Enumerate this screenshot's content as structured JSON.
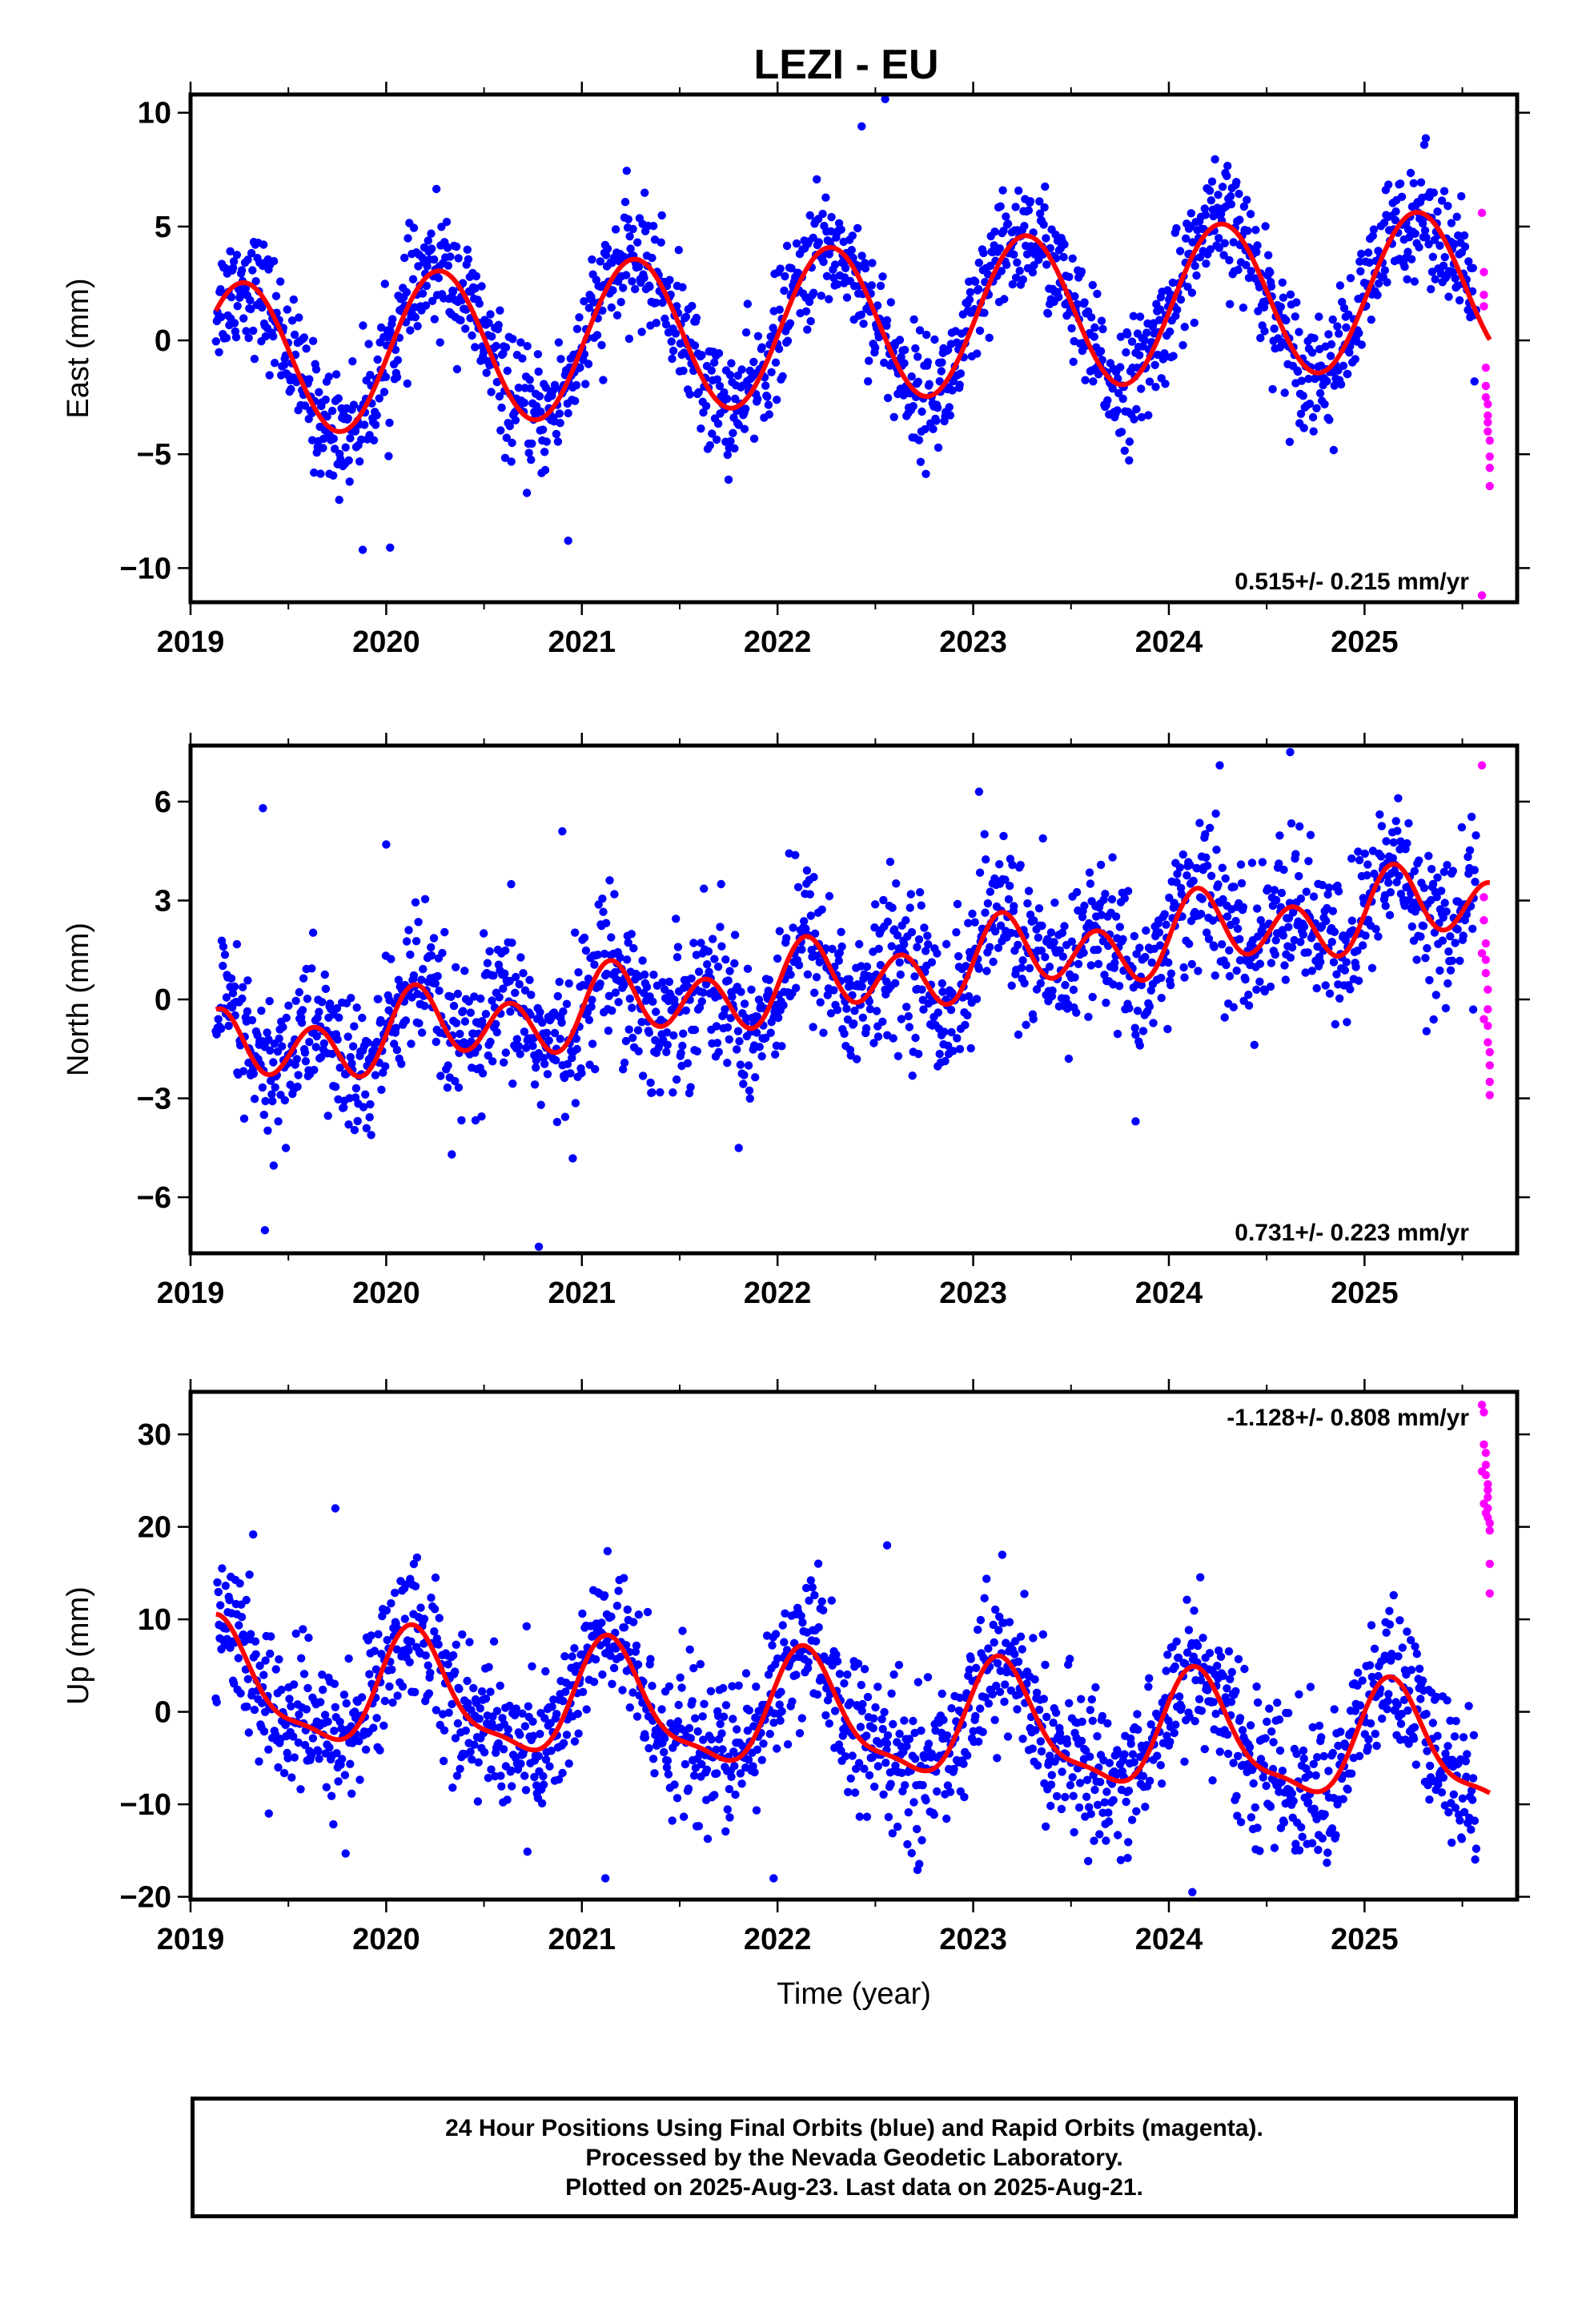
{
  "chart_data": {
    "title": "LEZI - EU",
    "type": "scatter",
    "xlabel": "Time (year)",
    "xlim": [
      2019.0,
      2025.78
    ],
    "x_ticks": [
      "2019",
      "2020",
      "2021",
      "2022",
      "2023",
      "2024",
      "2025"
    ],
    "grid": false,
    "legend": "none",
    "colors": {
      "final": "#0000ff",
      "rapid": "#ff00ff",
      "model": "#ff0000"
    },
    "panels": [
      {
        "ylabel": "East (mm)",
        "ylim": [
          -11.5,
          10.8
        ],
        "y_ticks": [
          10,
          5,
          0,
          -5,
          -10
        ],
        "y_tick_labels": [
          "10",
          "5",
          "0",
          "−5",
          "−10"
        ],
        "rate_text": "0.515+/- 0.215 mm/yr",
        "rate_pos": "bottom-right",
        "model": {
          "offset": -1.0,
          "rate": 0.515,
          "annual_amp": 3.4,
          "annual_phase": -0.1,
          "semi_amp": 0.0,
          "semi_phase": 0.0,
          "x_start": 2019.13,
          "x_end": 2025.64
        },
        "noise_sd": 1.3,
        "final_points": {
          "x_start": 2019.13,
          "x_end": 2025.57,
          "count": 1700
        },
        "rapid_points": {
          "x": [
            2025.6,
            2025.61,
            2025.61,
            2025.62,
            2025.62,
            2025.62,
            2025.63,
            2025.63,
            2025.63,
            2025.63,
            2025.64,
            2025.64,
            2025.64,
            2025.64,
            2025.6,
            2025.61
          ],
          "y": [
            5.6,
            2.0,
            1.5,
            -1.2,
            -2.0,
            -2.5,
            -2.8,
            -3.3,
            -3.6,
            -4.0,
            -4.4,
            -5.1,
            -5.6,
            -6.4,
            -11.2,
            3.0
          ]
        },
        "outliers": {
          "x": [
            2022.43,
            2022.55,
            2019.88,
            2020.02,
            2020.93
          ],
          "y": [
            9.4,
            10.6,
            -9.2,
            -9.1,
            -8.8
          ]
        }
      },
      {
        "ylabel": "North (mm)",
        "ylim": [
          -7.7,
          7.7
        ],
        "y_ticks": [
          6,
          3,
          0,
          -3,
          -6
        ],
        "y_tick_labels": [
          "6",
          "3",
          "0",
          "−3",
          "−6"
        ],
        "rate_text": "0.731+/- 0.223 mm/yr",
        "rate_pos": "bottom-right",
        "model": {
          "offset": -1.8,
          "rate": 0.731,
          "annual_amp": 0.5,
          "annual_phase": 0.3,
          "semi_amp": 0.95,
          "semi_phase": -0.15,
          "x_start": 2019.13,
          "x_end": 2025.64
        },
        "noise_sd": 1.15,
        "final_points": {
          "x_start": 2019.13,
          "x_end": 2025.57,
          "count": 1700
        },
        "rapid_points": {
          "x": [
            2025.6,
            2025.61,
            2025.61,
            2025.62,
            2025.62,
            2025.62,
            2025.63,
            2025.63,
            2025.63,
            2025.63,
            2025.64,
            2025.64,
            2025.64,
            2025.64,
            2025.6,
            2025.61
          ],
          "y": [
            7.1,
            3.1,
            2.4,
            1.7,
            1.2,
            0.8,
            0.3,
            -0.3,
            -0.8,
            -1.3,
            -1.6,
            -2.0,
            -2.5,
            -2.9,
            1.4,
            -0.6
          ]
        },
        "outliers": {
          "x": [
            2019.37,
            2019.38,
            2020.0,
            2020.9,
            2020.78,
            2024.62,
            2024.26,
            2023.83,
            2023.03
          ],
          "y": [
            5.8,
            -7.0,
            4.7,
            5.1,
            -7.5,
            7.5,
            7.1,
            -3.7,
            6.3
          ]
        }
      },
      {
        "ylabel": "Up (mm)",
        "ylim": [
          -20.3,
          34.6
        ],
        "y_ticks": [
          30,
          20,
          10,
          0,
          -10,
          -20
        ],
        "y_tick_labels": [
          "30",
          "20",
          "10",
          "0",
          "−10",
          "−20"
        ],
        "rate_text": "-1.128+/- 0.808 mm/yr",
        "rate_pos": "top-right",
        "model": {
          "offset": 3.0,
          "rate": -1.128,
          "annual_amp": 6.0,
          "annual_phase": 0.62,
          "semi_amp": 1.8,
          "semi_phase": 0.15,
          "x_start": 2019.13,
          "x_end": 2025.64
        },
        "noise_sd": 4.0,
        "final_points": {
          "x_start": 2019.13,
          "x_end": 2025.57,
          "count": 1700
        },
        "rapid_points": {
          "x": [
            2025.6,
            2025.61,
            2025.61,
            2025.62,
            2025.62,
            2025.62,
            2025.63,
            2025.63,
            2025.63,
            2025.63,
            2025.64,
            2025.64,
            2025.64,
            2025.64,
            2025.6,
            2025.61,
            2025.62,
            2025.63
          ],
          "y": [
            33.2,
            32.4,
            28.9,
            28.0,
            26.7,
            25.6,
            24.6,
            23.2,
            22.0,
            21.0,
            20.4,
            19.6,
            16.0,
            12.8,
            26.0,
            22.5,
            21.5,
            24.0
          ]
        },
        "outliers": {
          "x": [
            2019.74,
            2021.12,
            2024.12,
            2021.98,
            2019.4,
            2022.56
          ],
          "y": [
            22.0,
            -18.0,
            -19.5,
            -18.0,
            -11.0,
            18.0
          ]
        }
      }
    ]
  },
  "footer": {
    "line1": "24 Hour Positions Using Final Orbits (blue) and Rapid Orbits (magenta).",
    "line2": "Processed by the Nevada Geodetic Laboratory.",
    "line3": "Plotted on 2025-Aug-23. Last data on 2025-Aug-21."
  }
}
